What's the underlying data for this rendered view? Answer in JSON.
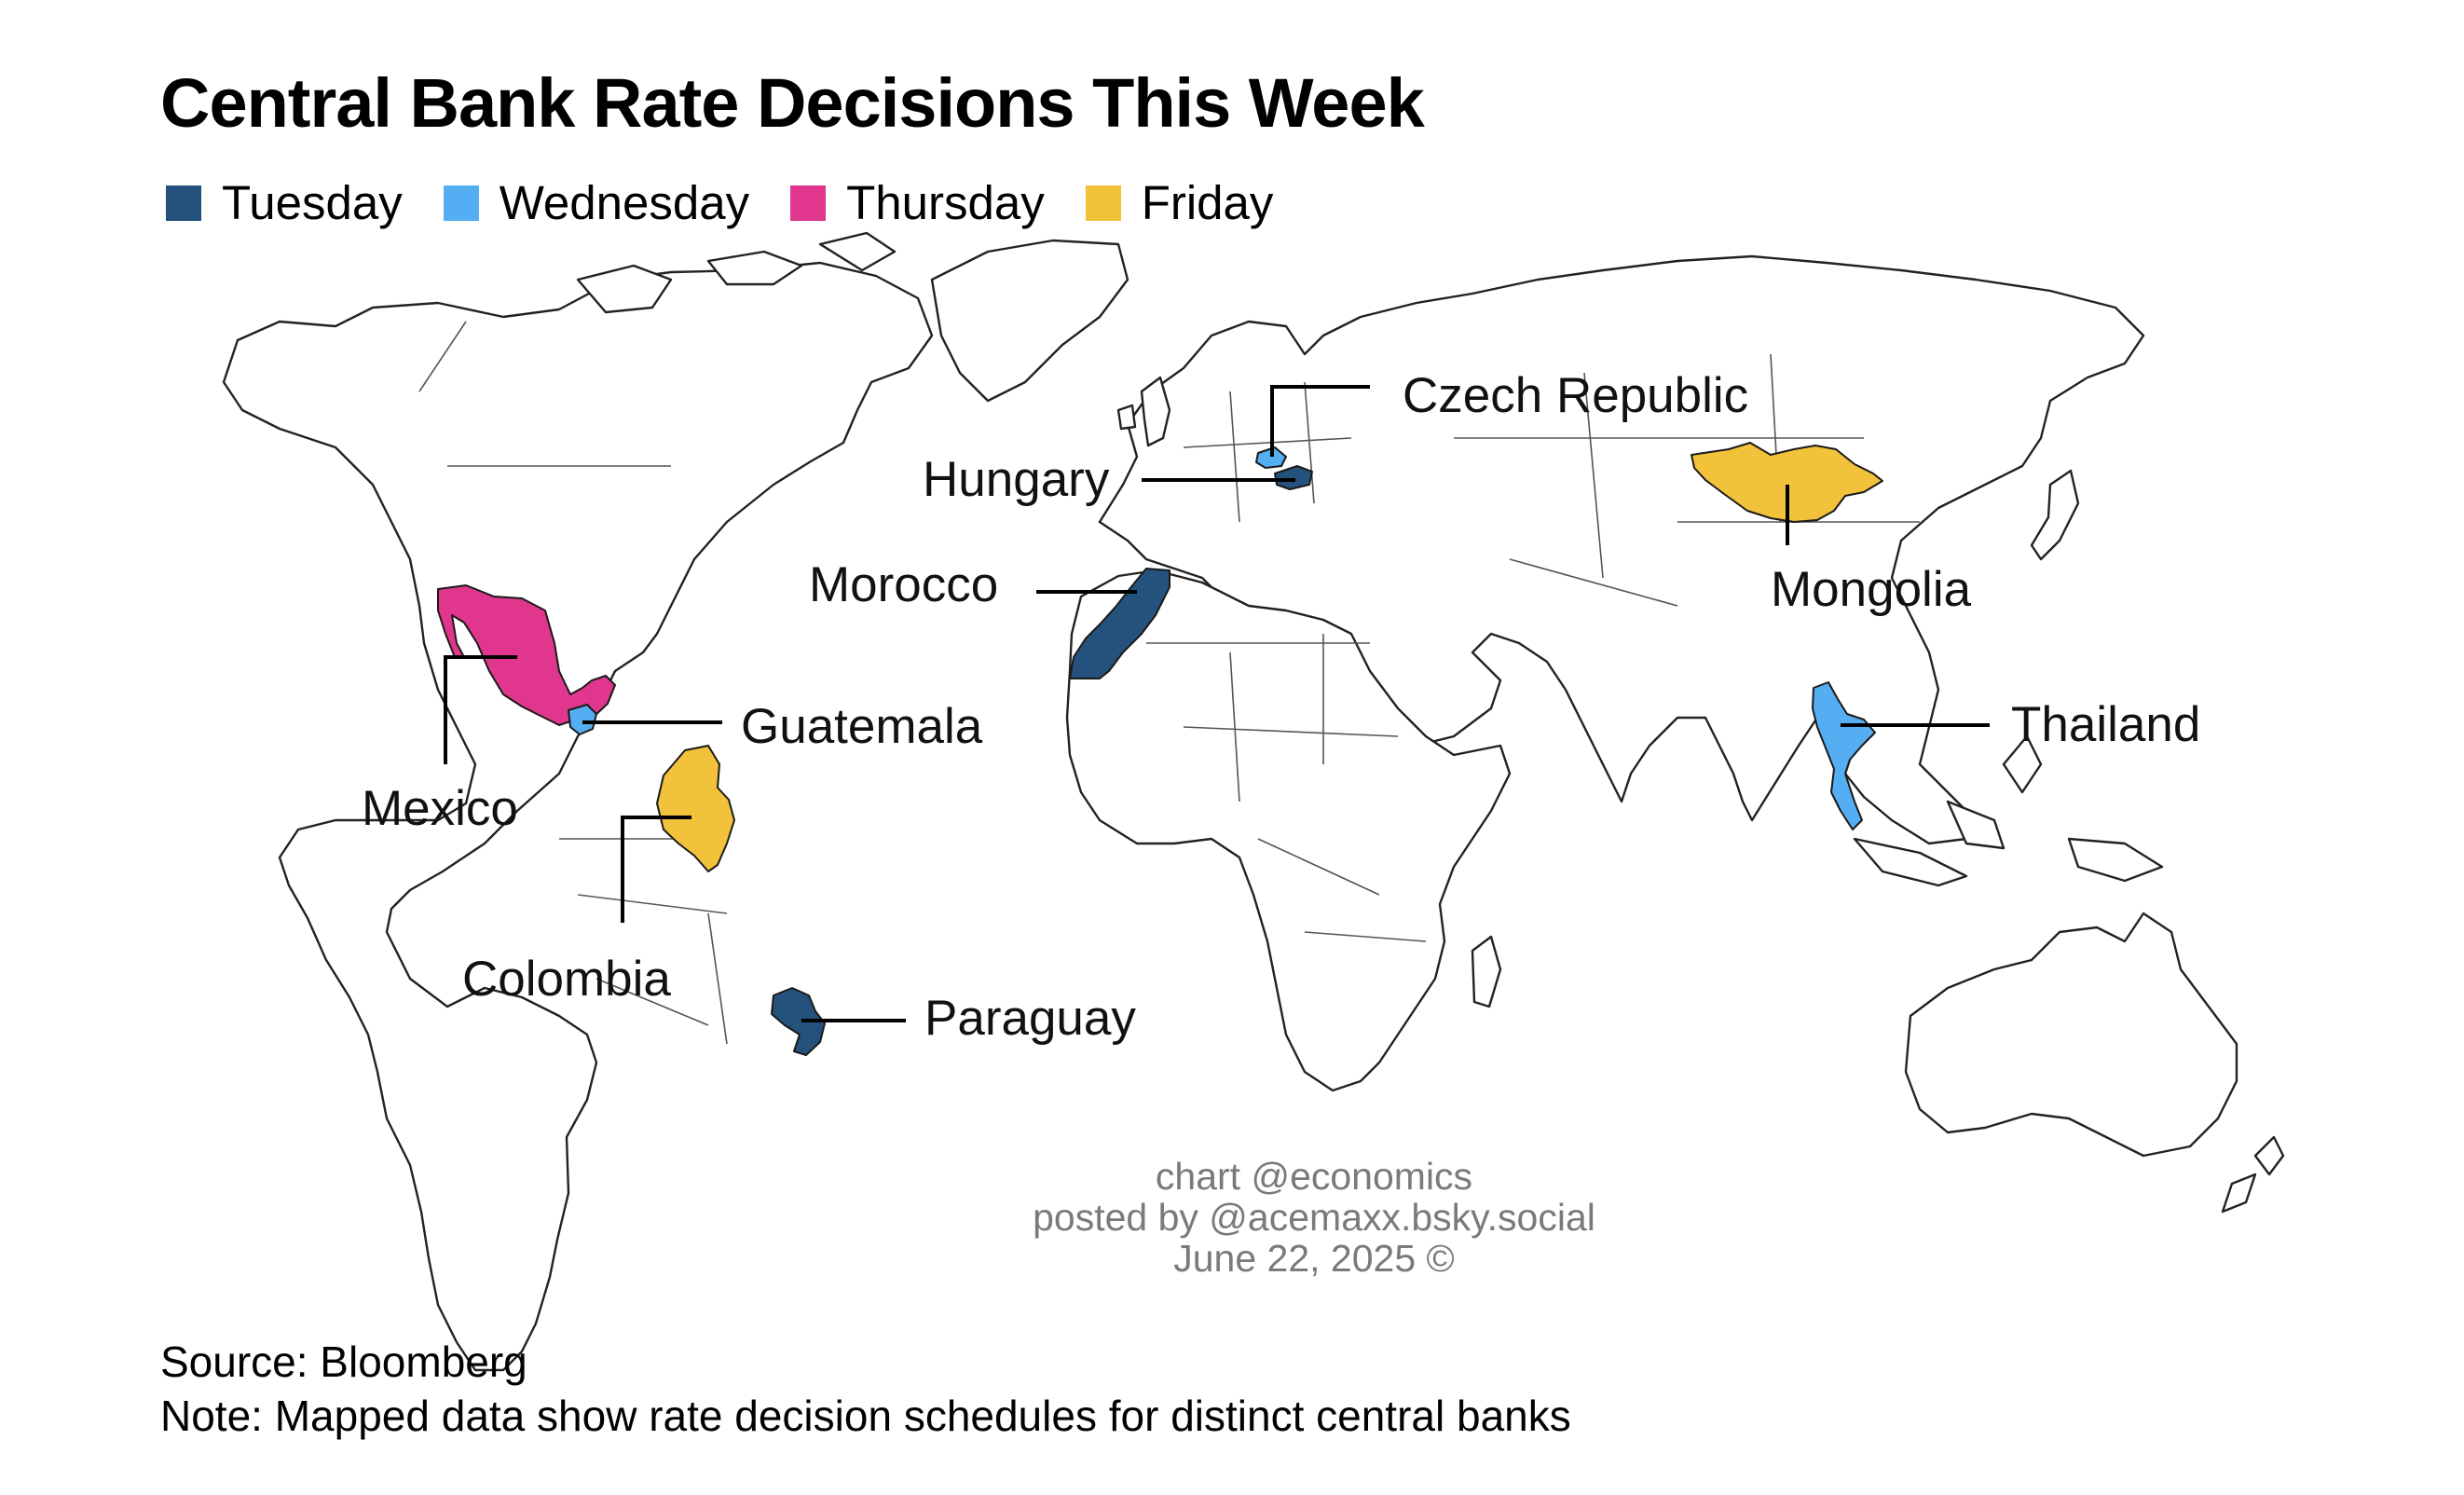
{
  "title": "Central Bank Rate Decisions This Week",
  "legend": [
    {
      "label": "Tuesday",
      "color": "#25527d"
    },
    {
      "label": "Wednesday",
      "color": "#56aef2"
    },
    {
      "label": "Thursday",
      "color": "#e0368e"
    },
    {
      "label": "Friday",
      "color": "#f2c23b"
    }
  ],
  "countries": [
    {
      "id": "czech",
      "name": "Czech Republic",
      "day": "Wednesday",
      "color": "#56aef2"
    },
    {
      "id": "hungary",
      "name": "Hungary",
      "day": "Tuesday",
      "color": "#25527d"
    },
    {
      "id": "morocco",
      "name": "Morocco",
      "day": "Tuesday",
      "color": "#25527d"
    },
    {
      "id": "mongolia",
      "name": "Mongolia",
      "day": "Friday",
      "color": "#f2c23b"
    },
    {
      "id": "thailand",
      "name": "Thailand",
      "day": "Wednesday",
      "color": "#56aef2"
    },
    {
      "id": "mexico",
      "name": "Mexico",
      "day": "Thursday",
      "color": "#e0368e"
    },
    {
      "id": "guatemala",
      "name": "Guatemala",
      "day": "Wednesday",
      "color": "#56aef2"
    },
    {
      "id": "colombia",
      "name": "Colombia",
      "day": "Friday",
      "color": "#f2c23b"
    },
    {
      "id": "paraguay",
      "name": "Paraguay",
      "day": "Tuesday",
      "color": "#25527d"
    }
  ],
  "credit": {
    "line1": "chart @economics",
    "line2": "posted by @acemaxx.bsky.social",
    "line3": "June 22, 2025 ©"
  },
  "footer": {
    "source": "Source: Bloomberg",
    "note": "Note: Mapped data show rate decision schedules for distinct central banks"
  }
}
